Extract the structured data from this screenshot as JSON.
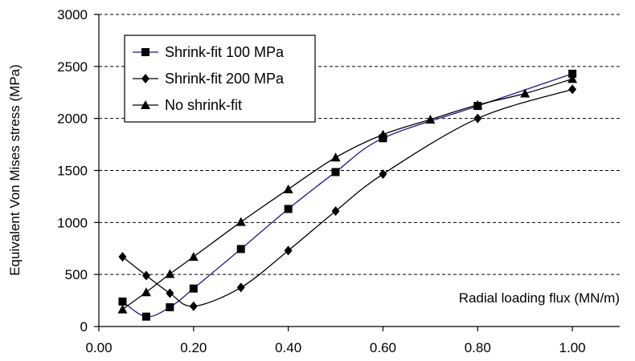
{
  "chart_data": {
    "type": "line",
    "title": "",
    "xlabel": "Radial loading flux  (MN/m)",
    "ylabel": "Equivalent Von Mises stress (MPa)",
    "xlim": [
      0,
      1.1
    ],
    "ylim": [
      0,
      3000
    ],
    "x_ticks": [
      "0.00",
      "0.20",
      "0.40",
      "0.60",
      "0.80",
      "1.00"
    ],
    "y_ticks": [
      "0",
      "500",
      "1000",
      "1500",
      "2000",
      "2500",
      "3000"
    ],
    "grid": "horizontal dashed",
    "legend_position": "top-left",
    "series": [
      {
        "name": "Shrink-fit 100 MPa",
        "marker": "square",
        "line_color": "#1a1a8c",
        "points": [
          [
            0.05,
            240
          ],
          [
            0.1,
            95
          ],
          [
            0.15,
            185
          ],
          [
            0.2,
            365
          ],
          [
            0.3,
            745
          ],
          [
            0.4,
            1130
          ],
          [
            0.5,
            1485
          ],
          [
            0.6,
            1810
          ],
          [
            0.8,
            2120
          ],
          [
            1.0,
            2430
          ]
        ]
      },
      {
        "name": "Shrink-fit 200 MPa",
        "marker": "diamond",
        "line_color": "#000000",
        "points": [
          [
            0.05,
            670
          ],
          [
            0.1,
            490
          ],
          [
            0.15,
            320
          ],
          [
            0.2,
            195
          ],
          [
            0.3,
            375
          ],
          [
            0.4,
            730
          ],
          [
            0.5,
            1110
          ],
          [
            0.6,
            1465
          ],
          [
            0.8,
            2000
          ],
          [
            1.0,
            2280
          ]
        ]
      },
      {
        "name": "No shrink-fit",
        "marker": "triangle",
        "line_color": "#000000",
        "points": [
          [
            0.05,
            165
          ],
          [
            0.1,
            330
          ],
          [
            0.15,
            505
          ],
          [
            0.2,
            670
          ],
          [
            0.3,
            1005
          ],
          [
            0.4,
            1320
          ],
          [
            0.5,
            1625
          ],
          [
            0.6,
            1845
          ],
          [
            0.7,
            1990
          ],
          [
            0.8,
            2130
          ],
          [
            0.9,
            2240
          ],
          [
            1.0,
            2380
          ]
        ]
      }
    ]
  }
}
